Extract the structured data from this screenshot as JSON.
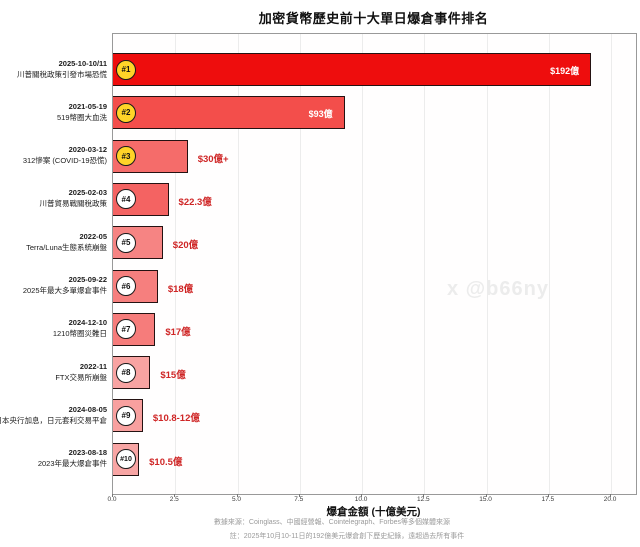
{
  "title": "加密貨幣歷史前十大單日爆倉事件排名",
  "watermark": "x @b66ny",
  "source_note": "數據來源：Coinglass、中國經營報、Cointelegraph、Forbes等多個媒體來源",
  "footnote": "註：2025年10月10-11日的192億美元爆倉創下歷史紀錄，遠超過去所有事件",
  "colors": {
    "value_label_red": "#cf2626",
    "value_label_white": "#ffffff",
    "badge_gold": "#ffd428",
    "badge_white": "#ffffff",
    "bar_border": "#241212",
    "grid": "#ececec"
  },
  "chart_data": {
    "type": "bar",
    "orientation": "horizontal",
    "title": "加密貨幣歷史前十大單日爆倉事件排名",
    "xlabel": "爆倉金額 (十億美元)",
    "xlim": [
      0,
      21
    ],
    "xticks": [
      "0.0",
      "2.5",
      "5.0",
      "7.5",
      "10.0",
      "12.5",
      "15.0",
      "17.5",
      "20.0"
    ],
    "grid": true,
    "legend": false,
    "items": [
      {
        "rank": "#1",
        "date": "2025-10-10/11",
        "event": "川普關稅政策引發市場恐慌",
        "value": 19.2,
        "value_label": "$192億",
        "label_inside": true,
        "bar_color": "#ee0d0d",
        "badge_color": "#ffd428"
      },
      {
        "rank": "#2",
        "date": "2021-05-19",
        "event": "519幣圈大血洗",
        "value": 9.3,
        "value_label": "$93億",
        "label_inside": true,
        "bar_color": "#f34e4b",
        "badge_color": "#ffd428"
      },
      {
        "rank": "#3",
        "date": "2020-03-12",
        "event": "312慘案 (COVID-19恐慌)",
        "value": 3.0,
        "value_label": "$30億+",
        "label_inside": false,
        "bar_color": "#f56c6a",
        "badge_color": "#ffd428"
      },
      {
        "rank": "#4",
        "date": "2025-02-03",
        "event": "川普貿易戰關稅政策",
        "value": 2.23,
        "value_label": "$22.3億",
        "label_inside": false,
        "bar_color": "#f46362",
        "badge_color": "#ffffff"
      },
      {
        "rank": "#5",
        "date": "2022-05",
        "event": "Terra/Luna生態系統崩盤",
        "value": 2.0,
        "value_label": "$20億",
        "label_inside": false,
        "bar_color": "#f68483",
        "badge_color": "#ffffff"
      },
      {
        "rank": "#6",
        "date": "2025-09-22",
        "event": "2025年最大多單爆倉事件",
        "value": 1.8,
        "value_label": "$18億",
        "label_inside": false,
        "bar_color": "#f67f7e",
        "badge_color": "#ffffff"
      },
      {
        "rank": "#7",
        "date": "2024-12-10",
        "event": "1210幣圈災難日",
        "value": 1.7,
        "value_label": "$17億",
        "label_inside": false,
        "bar_color": "#f67c7b",
        "badge_color": "#ffffff"
      },
      {
        "rank": "#8",
        "date": "2022-11",
        "event": "FTX交易所崩盤",
        "value": 1.5,
        "value_label": "$15億",
        "label_inside": false,
        "bar_color": "#f8a3a2",
        "badge_color": "#ffffff"
      },
      {
        "rank": "#9",
        "date": "2024-08-05",
        "event": "日本央行加息，日元套利交易平倉",
        "value": 1.2,
        "value_label": "$10.8-12億",
        "label_inside": false,
        "bar_color": "#f8a09f",
        "badge_color": "#ffffff"
      },
      {
        "rank": "#10",
        "date": "2023-08-18",
        "event": "2023年最大爆倉事件",
        "value": 1.05,
        "value_label": "$10.5億",
        "label_inside": false,
        "bar_color": "#f8a5a4",
        "badge_color": "#ffffff"
      }
    ]
  }
}
